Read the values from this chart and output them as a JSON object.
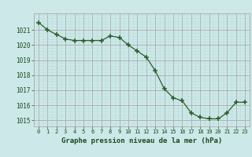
{
  "x": [
    0,
    1,
    2,
    3,
    4,
    5,
    6,
    7,
    8,
    9,
    10,
    11,
    12,
    13,
    14,
    15,
    16,
    17,
    18,
    19,
    20,
    21,
    22,
    23
  ],
  "y": [
    1021.5,
    1021.0,
    1020.7,
    1020.4,
    1020.3,
    1020.3,
    1020.3,
    1020.3,
    1020.6,
    1020.5,
    1020.0,
    1019.6,
    1019.2,
    1018.3,
    1017.1,
    1016.5,
    1016.3,
    1015.5,
    1015.2,
    1015.1,
    1015.1,
    1015.5,
    1016.2,
    1016.2
  ],
  "line_color": "#2a5e2a",
  "marker_color": "#2a5e2a",
  "bg_color": "#cce8e8",
  "grid_color_major": "#aaaaaa",
  "grid_color_minor": "#bbdddd",
  "xlabel": "Graphe pression niveau de la mer (hPa)",
  "xlabel_color": "#1a4a1a",
  "tick_color": "#1a4a1a",
  "ylim": [
    1014.6,
    1022.1
  ],
  "xlim": [
    -0.5,
    23.5
  ],
  "yticks": [
    1015,
    1016,
    1017,
    1018,
    1019,
    1020,
    1021
  ],
  "xticks": [
    0,
    1,
    2,
    3,
    4,
    5,
    6,
    7,
    8,
    9,
    10,
    11,
    12,
    13,
    14,
    15,
    16,
    17,
    18,
    19,
    20,
    21,
    22,
    23
  ],
  "xtick_labels": [
    "0",
    "1",
    "2",
    "3",
    "4",
    "5",
    "6",
    "7",
    "8",
    "9",
    "10",
    "11",
    "12",
    "13",
    "14",
    "15",
    "16",
    "17",
    "18",
    "19",
    "20",
    "21",
    "22",
    "23"
  ]
}
